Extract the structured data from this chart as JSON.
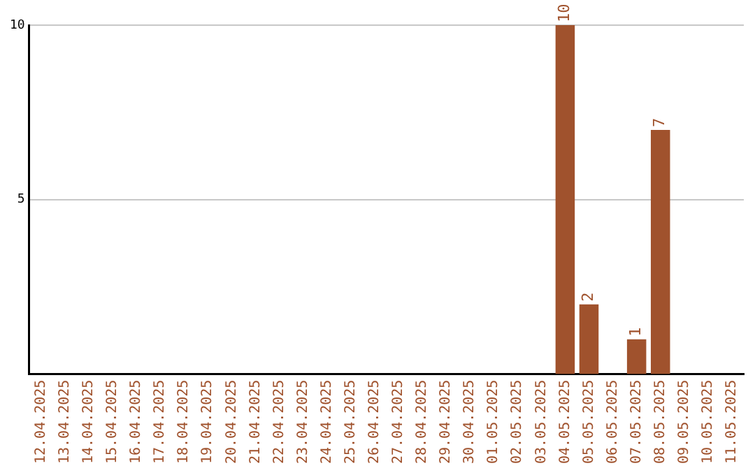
{
  "chart_data": {
    "type": "bar",
    "categories": [
      "12.04.2025",
      "13.04.2025",
      "14.04.2025",
      "15.04.2025",
      "16.04.2025",
      "17.04.2025",
      "18.04.2025",
      "19.04.2025",
      "20.04.2025",
      "21.04.2025",
      "22.04.2025",
      "23.04.2025",
      "24.04.2025",
      "25.04.2025",
      "26.04.2025",
      "27.04.2025",
      "28.04.2025",
      "29.04.2025",
      "30.04.2025",
      "01.05.2025",
      "02.05.2025",
      "03.05.2025",
      "04.05.2025",
      "05.05.2025",
      "06.05.2025",
      "07.05.2025",
      "08.05.2025",
      "09.05.2025",
      "10.05.2025",
      "11.05.2025"
    ],
    "values": [
      0,
      0,
      0,
      0,
      0,
      0,
      0,
      0,
      0,
      0,
      0,
      0,
      0,
      0,
      0,
      0,
      0,
      0,
      0,
      0,
      0,
      0,
      10,
      2,
      0,
      1,
      7,
      0,
      0,
      0
    ],
    "value_labels": [
      null,
      null,
      null,
      null,
      null,
      null,
      null,
      null,
      null,
      null,
      null,
      null,
      null,
      null,
      null,
      null,
      null,
      null,
      null,
      null,
      null,
      null,
      "10",
      "2",
      null,
      "1",
      "7",
      null,
      null,
      null
    ],
    "color": "#a0522d",
    "ylim": [
      0,
      10
    ],
    "yticks": [
      5,
      10
    ],
    "grid": "y",
    "legend": false
  }
}
